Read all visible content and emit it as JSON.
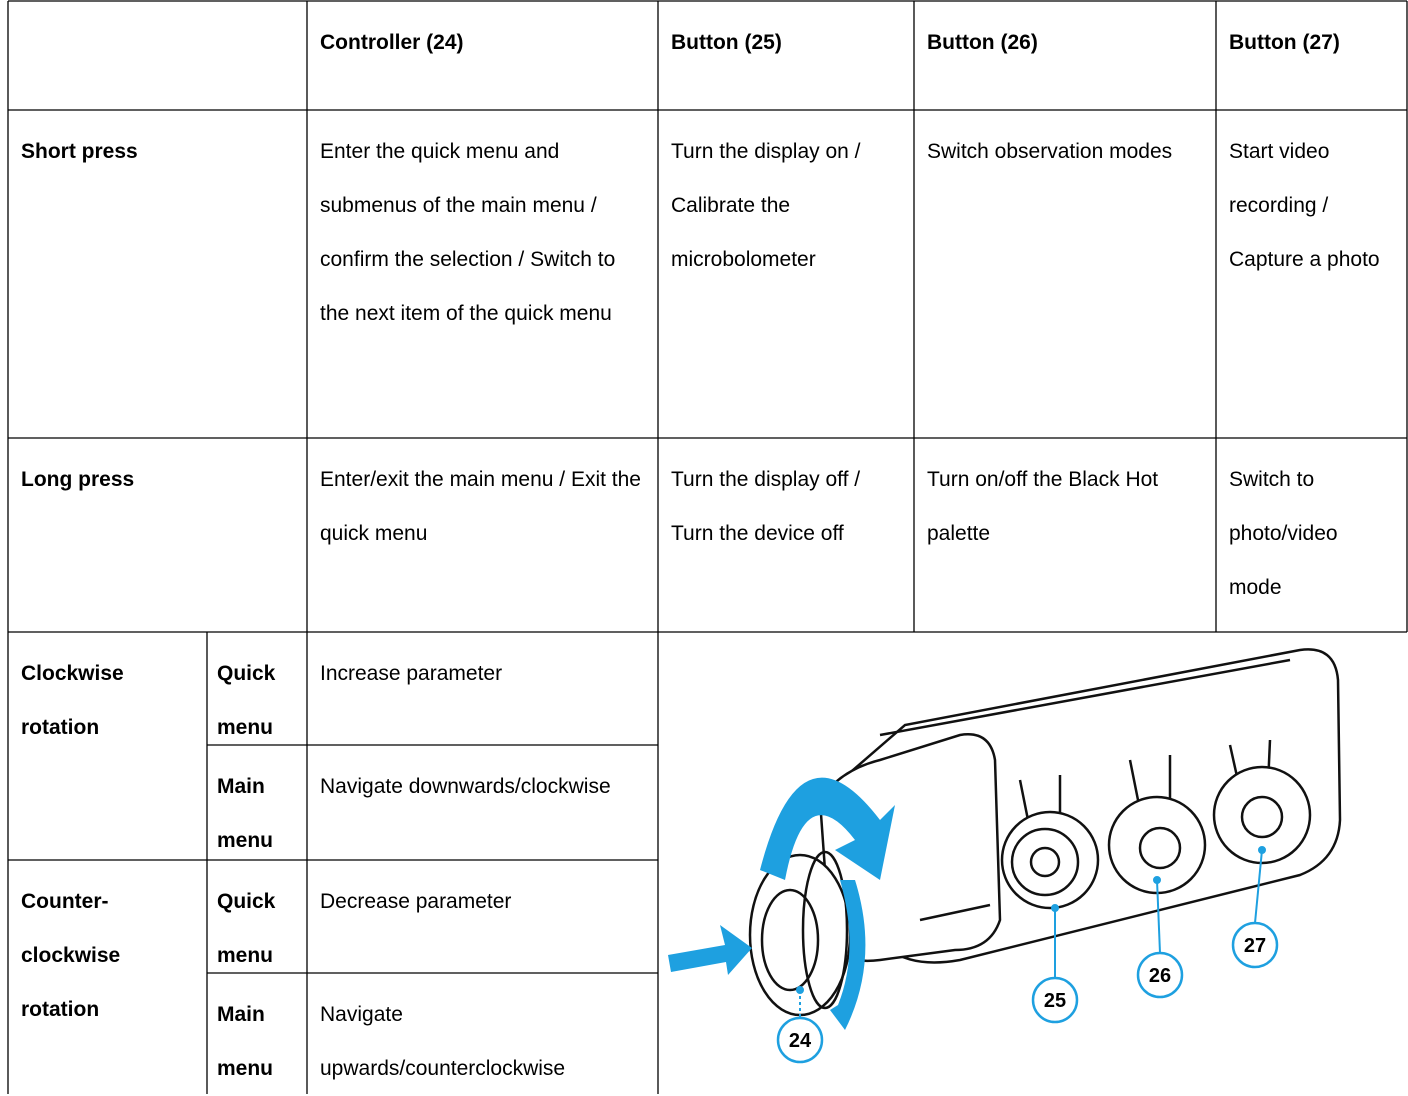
{
  "table": {
    "header": [
      "Controller (24)",
      "Button (25)",
      "Button (26)",
      "Button (27)"
    ],
    "press_rows": [
      {
        "label": "Short press",
        "cells": [
          "Enter the quick menu and submenus of the main menu / confirm the selection / Switch to the next item of the quick menu",
          "Turn the display on / Calibrate the microbolometer",
          "Switch observation modes",
          "Start video recording / Capture a photo"
        ]
      },
      {
        "label": "Long press",
        "cells": [
          "Enter/exit the main menu / Exit the quick menu",
          "Turn the display off / Turn the device off",
          "Turn on/off the Black Hot palette",
          "Switch to photo/video mode"
        ]
      }
    ],
    "rotation_rows": [
      {
        "label": "Clockwise rotation",
        "modes": [
          {
            "mode": "Quick menu",
            "action": "Increase parameter"
          },
          {
            "mode": "Main menu",
            "action": "Navigate downwards/clockwise"
          }
        ]
      },
      {
        "label": "Counter-clockwise rotation",
        "modes": [
          {
            "mode": "Quick menu",
            "action": "Decrease parameter"
          },
          {
            "mode": "Main menu",
            "action": "Navigate upwards/counterclockwise"
          }
        ]
      }
    ]
  },
  "figure": {
    "callouts": [
      "24",
      "25",
      "26",
      "27"
    ]
  }
}
